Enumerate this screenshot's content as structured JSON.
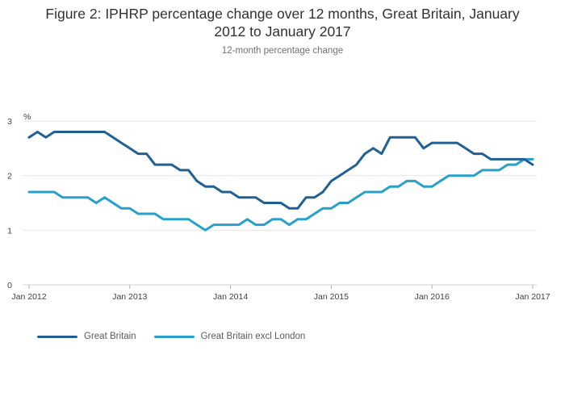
{
  "title_line1": "Figure 2: IPHRP percentage change over 12 months, Great Britain, January",
  "title_line2": "2012 to January 2017",
  "subtitle": "12-month percentage change",
  "chart_data": {
    "type": "line",
    "title": "Figure 2: IPHRP percentage change over 12 months, Great Britain, January 2012 to January 2017",
    "subtitle": "12-month percentage change",
    "ylabel": "%",
    "xlabel": "",
    "ylim": [
      0,
      3
    ],
    "yticks": [
      0,
      1,
      2,
      3
    ],
    "xtick_labels": [
      "Jan 2012",
      "Jan 2013",
      "Jan 2014",
      "Jan 2015",
      "Jan 2016",
      "Jan 2017"
    ],
    "grid": true,
    "legend_position": "bottom-left",
    "x": [
      "2012-01",
      "2012-02",
      "2012-03",
      "2012-04",
      "2012-05",
      "2012-06",
      "2012-07",
      "2012-08",
      "2012-09",
      "2012-10",
      "2012-11",
      "2012-12",
      "2013-01",
      "2013-02",
      "2013-03",
      "2013-04",
      "2013-05",
      "2013-06",
      "2013-07",
      "2013-08",
      "2013-09",
      "2013-10",
      "2013-11",
      "2013-12",
      "2014-01",
      "2014-02",
      "2014-03",
      "2014-04",
      "2014-05",
      "2014-06",
      "2014-07",
      "2014-08",
      "2014-09",
      "2014-10",
      "2014-11",
      "2014-12",
      "2015-01",
      "2015-02",
      "2015-03",
      "2015-04",
      "2015-05",
      "2015-06",
      "2015-07",
      "2015-08",
      "2015-09",
      "2015-10",
      "2015-11",
      "2015-12",
      "2016-01",
      "2016-02",
      "2016-03",
      "2016-04",
      "2016-05",
      "2016-06",
      "2016-07",
      "2016-08",
      "2016-09",
      "2016-10",
      "2016-11",
      "2016-12",
      "2017-01"
    ],
    "series": [
      {
        "name": "Great Britain",
        "color": "#206095",
        "values": [
          2.7,
          2.8,
          2.7,
          2.8,
          2.8,
          2.8,
          2.8,
          2.8,
          2.8,
          2.8,
          2.7,
          2.6,
          2.5,
          2.4,
          2.4,
          2.2,
          2.2,
          2.2,
          2.1,
          2.1,
          1.9,
          1.8,
          1.8,
          1.7,
          1.7,
          1.6,
          1.6,
          1.6,
          1.5,
          1.5,
          1.5,
          1.4,
          1.4,
          1.6,
          1.6,
          1.7,
          1.9,
          2.0,
          2.1,
          2.2,
          2.4,
          2.5,
          2.4,
          2.7,
          2.7,
          2.7,
          2.7,
          2.5,
          2.6,
          2.6,
          2.6,
          2.6,
          2.5,
          2.4,
          2.4,
          2.3,
          2.3,
          2.3,
          2.3,
          2.3,
          2.2
        ]
      },
      {
        "name": "Great Britain excl London",
        "color": "#27a0cc",
        "values": [
          1.7,
          1.7,
          1.7,
          1.7,
          1.6,
          1.6,
          1.6,
          1.6,
          1.5,
          1.6,
          1.5,
          1.4,
          1.4,
          1.3,
          1.3,
          1.3,
          1.2,
          1.2,
          1.2,
          1.2,
          1.1,
          1.0,
          1.1,
          1.1,
          1.1,
          1.1,
          1.2,
          1.1,
          1.1,
          1.2,
          1.2,
          1.1,
          1.2,
          1.2,
          1.3,
          1.4,
          1.4,
          1.5,
          1.5,
          1.6,
          1.7,
          1.7,
          1.7,
          1.8,
          1.8,
          1.9,
          1.9,
          1.8,
          1.8,
          1.9,
          2.0,
          2.0,
          2.0,
          2.0,
          2.1,
          2.1,
          2.1,
          2.2,
          2.2,
          2.3,
          2.3
        ]
      }
    ]
  }
}
